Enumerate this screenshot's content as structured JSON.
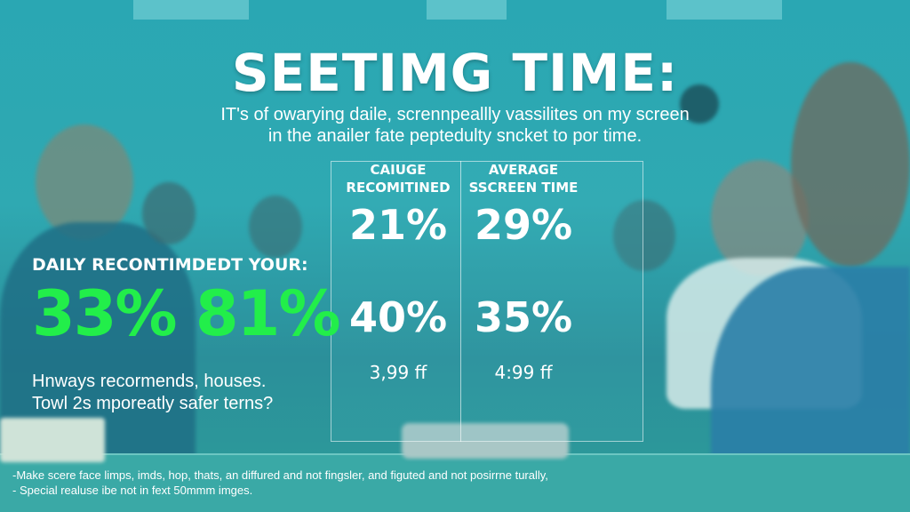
{
  "title": "SEETIMG TIME:",
  "subtitle": [
    "IT's of owarying daile, scrennpeallly vassilites on my screen",
    "in the anailer fate peptedulty sncket to por time."
  ],
  "left": {
    "heading": "DAILY RECONTIMDEDT YOUR:",
    "stats": "33% 81%",
    "question": [
      "Hnways recormends, houses.",
      "Towl 2s mporeatly safer terns?"
    ],
    "stat_color": "#22ee4a"
  },
  "panel": {
    "columns": [
      {
        "heading": [
          "CAIUGE",
          "RECOMITINED"
        ],
        "value_top": "21%",
        "value_bottom": "40%",
        "note": "3,99 ff"
      },
      {
        "heading": [
          "AVERAGE",
          "SSCREEN TIME"
        ],
        "value_top": "29%",
        "value_bottom": "35%",
        "note": "4:99 ff"
      }
    ]
  },
  "footnotes": [
    "-Make scere face limps, imds, hop, thats, an diffured and not fingsler, and figuted and not posirrne turally,",
    "- Special realuse ibe not in fext 50mmm imges."
  ],
  "colors": {
    "background": "#2aa7b3",
    "accent": "#22ee4a"
  }
}
